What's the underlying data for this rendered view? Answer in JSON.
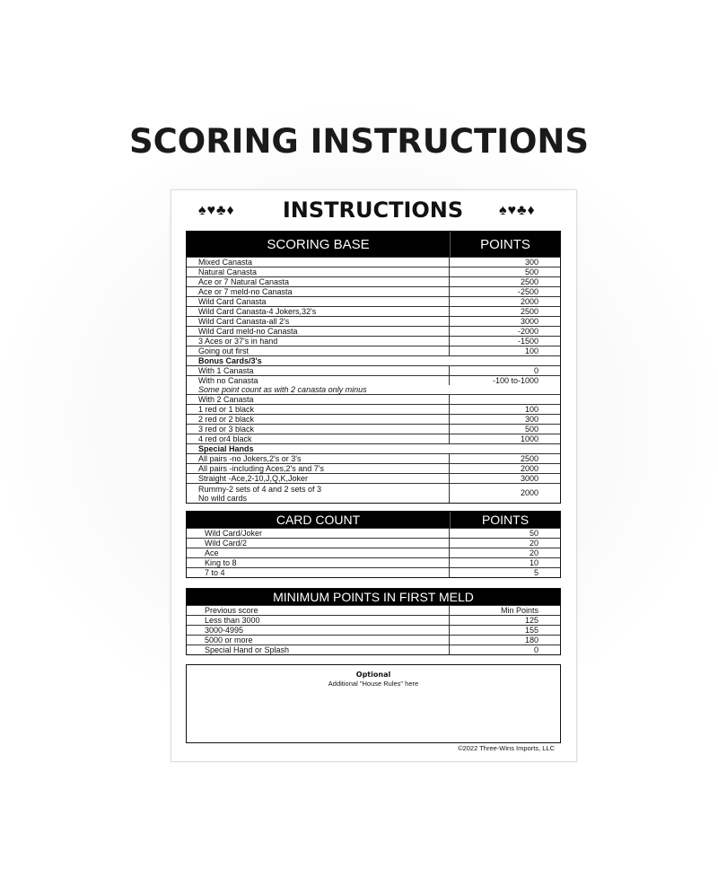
{
  "page_title": "SCORING INSTRUCTIONS",
  "card": {
    "title": "INSTRUCTIONS",
    "suits_left": "♠♥♣♦",
    "suits_right": "♠♥♣♦"
  },
  "scoring": {
    "header": {
      "label": "SCORING  BASE",
      "points": "POINTS"
    },
    "rows": [
      {
        "label": "Mixed Canasta",
        "value": "300"
      },
      {
        "label": "Natural Canasta",
        "value": "500"
      },
      {
        "label": "Ace or 7 Natural Canasta",
        "value": "2500"
      },
      {
        "label": "Ace or 7 meld-no Canasta",
        "value": "-2500"
      },
      {
        "label": "Wild Card Canasta",
        "value": "2000"
      },
      {
        "label": "Wild Card Canasta-4 Jokers,32's",
        "value": "2500"
      },
      {
        "label": "Wild Card Canasta-all 2's",
        "value": "3000"
      },
      {
        "label": "Wild Card meld-no Canasta",
        "value": "-2000"
      },
      {
        "label": "3 Aces or 37's in hand",
        "value": "-1500"
      },
      {
        "label": "Going out first",
        "value": "100"
      },
      {
        "type": "section",
        "label": "Bonus Cards/3's"
      },
      {
        "label": "With 1 Canasta",
        "value": "0"
      },
      {
        "label": "With no Canasta",
        "value": "-100 to-1000"
      },
      {
        "type": "note",
        "label": "Some point count as with 2 canasta only minus"
      },
      {
        "label": "With 2 Canasta",
        "value": ""
      },
      {
        "label": "1 red or 1 black",
        "value": "100"
      },
      {
        "label": "2 red or 2 black",
        "value": "300"
      },
      {
        "label": "3 red or 3 black",
        "value": "500"
      },
      {
        "label": "4 red or4 black",
        "value": "1000"
      },
      {
        "type": "section",
        "label": "Special Hands"
      },
      {
        "label": "All pairs -no Jokers,2's or 3's",
        "value": "2500"
      },
      {
        "label": "All pairs -including Aces,2's and 7's",
        "value": "2000"
      },
      {
        "label": "Straight -Ace,2-10,J,Q,K,Joker",
        "value": "3000"
      },
      {
        "type": "double",
        "label": "Rummy-2 sets of 4 and 2 sets of 3",
        "label2": "No wild cards",
        "value": "2000"
      }
    ]
  },
  "card_count": {
    "header": {
      "label": "CARD COUNT",
      "points": "POINTS"
    },
    "rows": [
      {
        "label": "Wild Card/Joker",
        "value": "50"
      },
      {
        "label": "Wild Card/2",
        "value": "20"
      },
      {
        "label": "Ace",
        "value": "20"
      },
      {
        "label": "King to 8",
        "value": "10"
      },
      {
        "label": "7 to 4",
        "value": "5"
      }
    ]
  },
  "min_meld": {
    "header": {
      "label": "MINIMUM POINTS IN FIRST MELD"
    },
    "rows": [
      {
        "label": "Previous score",
        "value": "Min Points"
      },
      {
        "label": "Less than 3000",
        "value": "125"
      },
      {
        "label": "3000-4995",
        "value": "155"
      },
      {
        "label": "5000 or more",
        "value": "180"
      },
      {
        "label": "Special Hand or Splash",
        "value": "0"
      }
    ]
  },
  "optional": {
    "title": "Optional",
    "subtitle": "Additional \"House Rules\" here"
  },
  "copyright": "©2022 Three-Wins Imports, LLC"
}
